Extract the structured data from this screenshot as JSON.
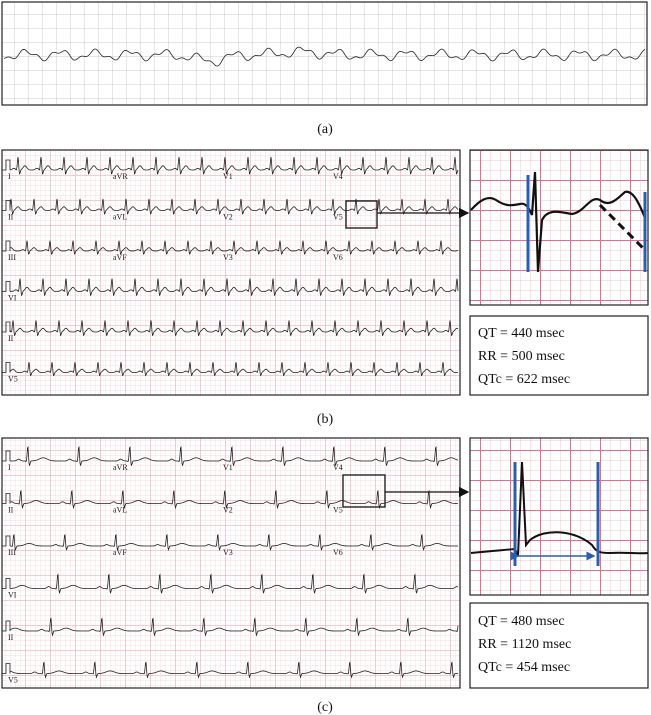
{
  "panels": [
    {
      "label": "(a)"
    },
    {
      "label": "(b)",
      "leads": [
        [
          "I",
          "aVR",
          "V1",
          "V4"
        ],
        [
          "II",
          "aVL",
          "V2",
          "V5"
        ],
        [
          "III",
          "aVF",
          "V3",
          "V6"
        ],
        [
          "VI"
        ],
        [
          "II"
        ],
        [
          "V5"
        ]
      ],
      "measurements": [
        "QT = 440 msec",
        "RR = 500 msec",
        "QTc = 622 msec"
      ]
    },
    {
      "label": "(c)",
      "leads": [
        [
          "I",
          "aVR",
          "V1",
          "V4"
        ],
        [
          "II",
          "aVL",
          "V2",
          "V5"
        ],
        [
          "III",
          "aVF",
          "V3",
          "V6"
        ],
        [
          "VI"
        ],
        [
          "II"
        ],
        [
          "V5"
        ]
      ],
      "measurements": [
        "QT = 480 msec",
        "RR = 1120 msec",
        "QTc = 454 msec"
      ]
    }
  ]
}
